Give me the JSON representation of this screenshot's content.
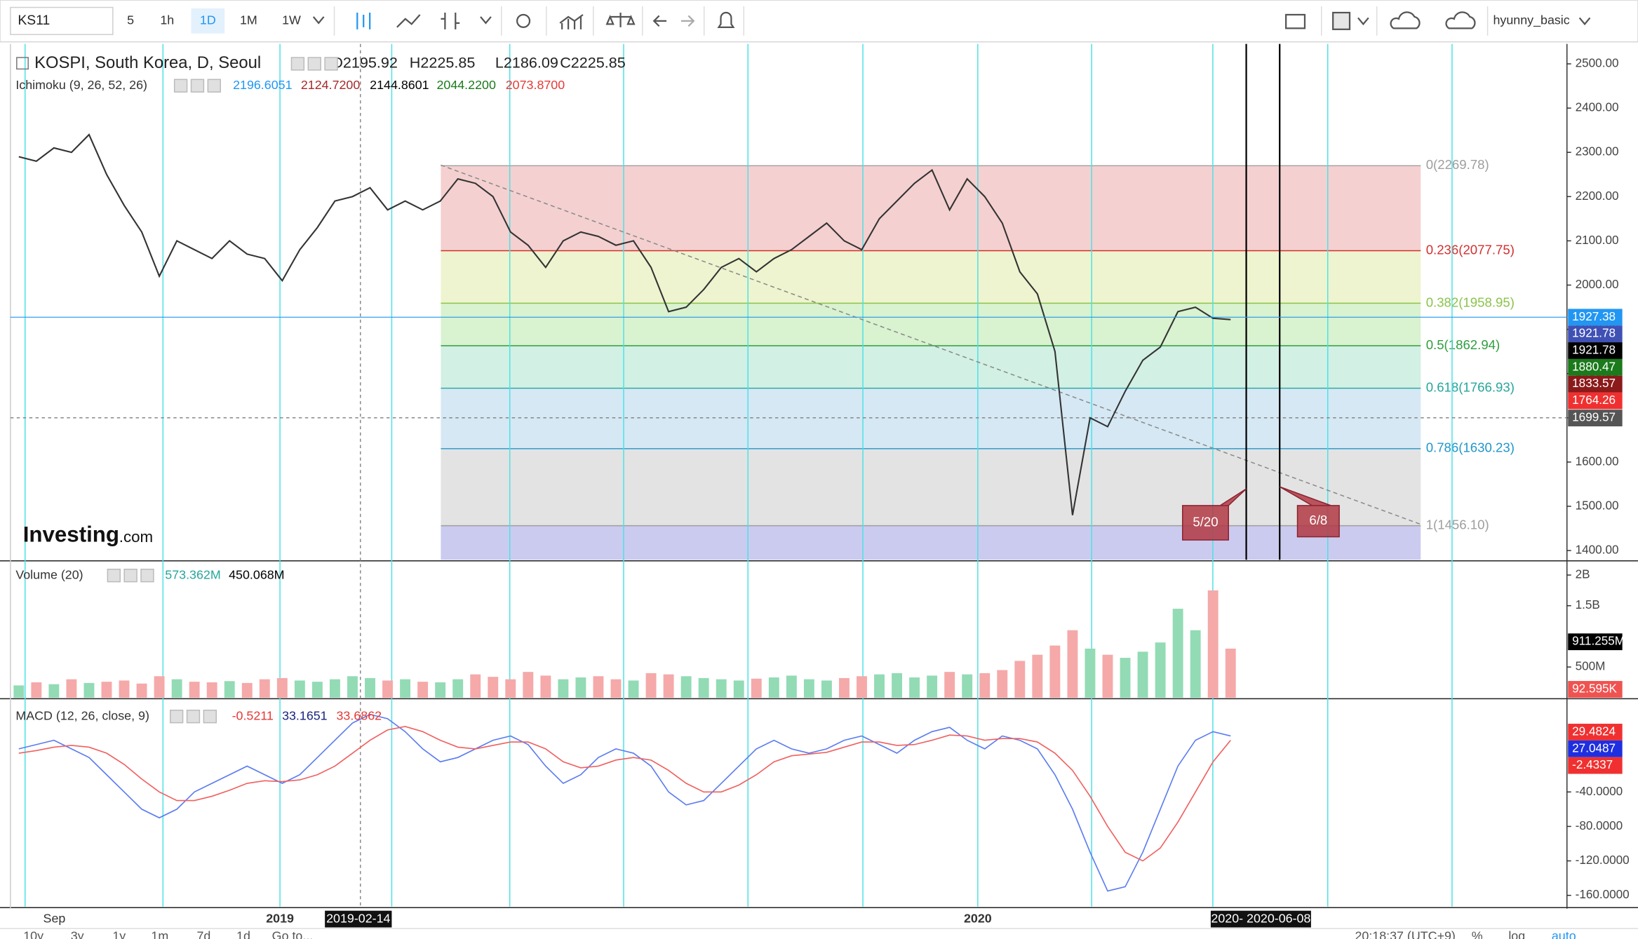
{
  "toolbar": {
    "symbol": "KS11",
    "intervals": [
      "5",
      "1h",
      "1D",
      "1M",
      "1W"
    ],
    "user": "hyunny_basic"
  },
  "chart_data": [
    {
      "type": "line",
      "title": "KOSPI, South Korea, D, Seoul",
      "ohlc": [
        "O2195.92",
        "H2225.85",
        "L2186.09",
        "C2225.85"
      ],
      "indicator": {
        "name": "Ichimoku (9, 26, 52, 26)",
        "values": [
          {
            "text": "2196.6051",
            "color": "#2196f3"
          },
          {
            "text": "2124.7200",
            "color": "#a52a2a"
          },
          {
            "text": "2144.8601",
            "color": "#000000"
          },
          {
            "text": "2044.2200",
            "color": "#1b7a1b"
          },
          {
            "text": "2073.8700",
            "color": "#e53935"
          }
        ]
      },
      "color": "#333333",
      "values": [
        2290,
        2280,
        2310,
        2300,
        2340,
        2250,
        2180,
        2120,
        2020,
        2100,
        2080,
        2060,
        2100,
        2070,
        2060,
        2010,
        2080,
        2130,
        2190,
        2200,
        2220,
        2170,
        2190,
        2170,
        2190,
        2240,
        2230,
        2200,
        2120,
        2090,
        2040,
        2100,
        2120,
        2110,
        2090,
        2100,
        2040,
        1940,
        1950,
        1990,
        2040,
        2060,
        2030,
        2060,
        2080,
        2110,
        2140,
        2100,
        2080,
        2150,
        2190,
        2230,
        2260,
        2170,
        2240,
        2200,
        2140,
        2030,
        1980,
        1850,
        1480,
        1700,
        1680,
        1760,
        1830,
        1860,
        1940,
        1950,
        1925,
        1922
      ],
      "ylim": [
        1379,
        2545
      ],
      "yticks": [
        {
          "value": 1400,
          "label": "1400.00"
        },
        {
          "value": 1500,
          "label": "1500.00"
        },
        {
          "value": 1600,
          "label": "1600.00"
        },
        {
          "value": 1700,
          "label": "1700.00"
        },
        {
          "value": 1800,
          "label": "1800.00"
        },
        {
          "value": 1900,
          "label": "1900.00"
        },
        {
          "value": 2000,
          "label": "2000.00"
        },
        {
          "value": 2100,
          "label": "2100.00"
        },
        {
          "value": 2200,
          "label": "2200.00"
        },
        {
          "value": 2300,
          "label": "2300.00"
        },
        {
          "value": 2400,
          "label": "2400.00"
        },
        {
          "value": 2500,
          "label": "2500.00"
        }
      ],
      "fib_levels": [
        {
          "value": 2269.78,
          "label": "0(2269.78)",
          "color": "#9e9e9e",
          "fill": "#f5d0d0"
        },
        {
          "value": 2077.75,
          "label": "0.236(2077.75)",
          "color": "#d32f2f",
          "fill": "#eef4cf"
        },
        {
          "value": 1958.95,
          "label": "0.382(1958.95)",
          "color": "#8bc34a",
          "fill": "#d9f2cf"
        },
        {
          "value": 1862.94,
          "label": "0.5(1862.94)",
          "color": "#2e9e3e",
          "fill": "#d2f0e4"
        },
        {
          "value": 1766.93,
          "label": "0.618(1766.93)",
          "color": "#26a69a",
          "fill": "#d5e8f4"
        },
        {
          "value": 1630.23,
          "label": "0.786(1630.23)",
          "color": "#2196c9",
          "fill": "#e3e3e3"
        },
        {
          "value": 1456.1,
          "label": "1(1456.10)",
          "color": "#9e9e9e",
          "fill": "#cbcbf0"
        }
      ],
      "price_labels": [
        {
          "value": 1927.38,
          "label": "1927.38",
          "color": "#2196f3"
        },
        {
          "value": 1921.78,
          "label": "1921.78",
          "color": "#3f51b5"
        },
        {
          "value": 1921.78,
          "label": "1921.78",
          "color": "#000000"
        },
        {
          "value": 1880.47,
          "label": "1880.47",
          "color": "#1b7a1b"
        },
        {
          "value": 1833.57,
          "label": "1833.57",
          "color": "#8b1a1a"
        },
        {
          "value": 1764.26,
          "label": "1764.26",
          "color": "#f03030"
        },
        {
          "value": 1699.57,
          "label": "1699.57",
          "color": "#555555"
        }
      ],
      "annotations": [
        "5/20",
        "6/8"
      ],
      "logo": [
        "Investing",
        ".com"
      ]
    },
    {
      "type": "bar",
      "title": "Volume (20)",
      "legend_values": [
        {
          "text": "573.362M",
          "color": "#26a69a"
        },
        {
          "text": "450.068M",
          "color": "#000000"
        }
      ],
      "up_color": "#92dbb5",
      "down_color": "#f5a9a9",
      "values": [
        200,
        250,
        220,
        300,
        240,
        260,
        280,
        230,
        350,
        300,
        260,
        250,
        270,
        240,
        300,
        320,
        280,
        260,
        300,
        350,
        320,
        280,
        300,
        260,
        250,
        300,
        380,
        340,
        300,
        420,
        360,
        300,
        330,
        350,
        300,
        280,
        400,
        380,
        350,
        320,
        300,
        280,
        310,
        330,
        360,
        300,
        280,
        320,
        350,
        380,
        400,
        330,
        360,
        420,
        380,
        400,
        450,
        600,
        700,
        850,
        1100,
        800,
        700,
        650,
        750,
        900,
        1450,
        1100,
        1750,
        800
      ],
      "ylim": [
        0,
        2214
      ],
      "yticks": [
        {
          "value": 500,
          "label": "500M"
        },
        {
          "value": 1500,
          "label": "1.5B"
        },
        {
          "value": 2000,
          "label": "2B"
        }
      ],
      "side_labels": [
        {
          "value": 911.255,
          "label": "911.255M",
          "color": "#000000"
        },
        {
          "value": 0.092595,
          "label": "92.595K",
          "color": "#ef5350"
        }
      ]
    },
    {
      "type": "line",
      "title": "MACD (12, 26, close, 9)",
      "legend_values": [
        {
          "text": "-0.5211",
          "color": "#e53935"
        },
        {
          "text": "33.1651",
          "color": "#1a237e"
        },
        {
          "text": "33.6862",
          "color": "#e53935"
        }
      ],
      "series": [
        {
          "color": "#5b7cf0",
          "values": [
            10,
            15,
            20,
            10,
            0,
            -20,
            -40,
            -60,
            -70,
            -60,
            -40,
            -30,
            -20,
            -10,
            -20,
            -30,
            -20,
            0,
            20,
            40,
            50,
            45,
            30,
            10,
            -5,
            0,
            10,
            20,
            25,
            15,
            -10,
            -30,
            -20,
            0,
            10,
            5,
            -10,
            -40,
            -55,
            -50,
            -30,
            -10,
            10,
            20,
            10,
            5,
            10,
            20,
            25,
            15,
            5,
            20,
            30,
            35,
            20,
            10,
            25,
            20,
            10,
            -20,
            -60,
            -110,
            -155,
            -150,
            -110,
            -60,
            -10,
            20,
            30,
            25
          ]
        },
        {
          "color": "#f06060",
          "values": [
            5,
            8,
            12,
            14,
            12,
            5,
            -8,
            -25,
            -40,
            -50,
            -50,
            -45,
            -38,
            -30,
            -27,
            -28,
            -26,
            -20,
            -10,
            5,
            20,
            32,
            36,
            30,
            20,
            12,
            10,
            14,
            18,
            18,
            10,
            -5,
            -12,
            -10,
            -3,
            0,
            -3,
            -15,
            -30,
            -40,
            -40,
            -32,
            -20,
            -5,
            2,
            4,
            6,
            12,
            18,
            18,
            14,
            15,
            20,
            26,
            25,
            20,
            22,
            22,
            18,
            5,
            -15,
            -45,
            -80,
            -110,
            -120,
            -105,
            -75,
            -40,
            -5,
            20
          ]
        }
      ],
      "ylim": [
        -173,
        67
      ],
      "yticks": [
        {
          "value": -40,
          "label": "-40.0000"
        },
        {
          "value": -80,
          "label": "-80.0000"
        },
        {
          "value": -120,
          "label": "-120.0000"
        },
        {
          "value": -160,
          "label": "-160.0000"
        }
      ],
      "side_labels": [
        {
          "value": 29.4824,
          "label": "29.4824",
          "color": "#f03030"
        },
        {
          "value": 27.0487,
          "label": "27.0487",
          "color": "#1e2fe0"
        },
        {
          "value": -2.4337,
          "label": "-2.4337",
          "color": "#f03030"
        }
      ]
    }
  ],
  "time_axis": [
    "Sep",
    "2019",
    "2019-02-14",
    "2020",
    "2020- 2020-06-08"
  ],
  "bottom_bar": {
    "ranges": [
      "10y",
      "3y",
      "1y",
      "1m",
      "7d",
      "1d",
      "Go to..."
    ],
    "clock": "20:18:37 (UTC+9)",
    "options": [
      "%",
      "log",
      "auto"
    ]
  }
}
